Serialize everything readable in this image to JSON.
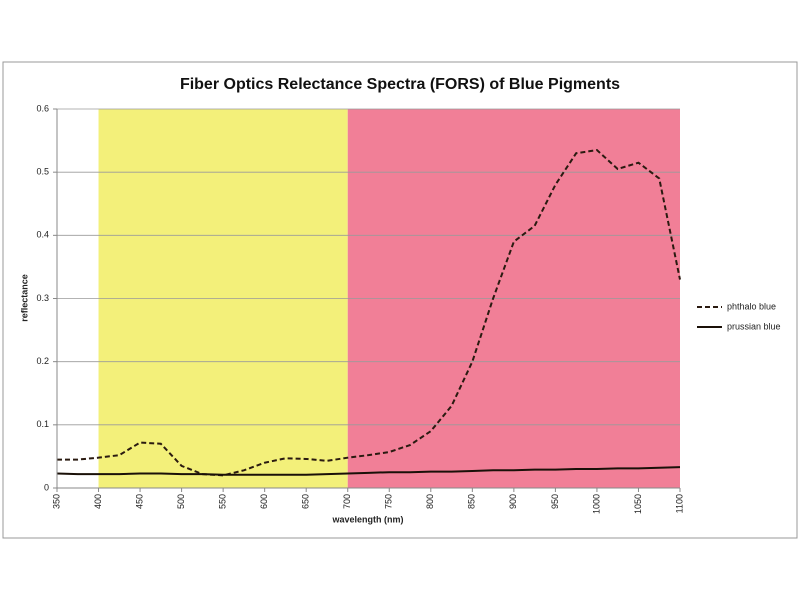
{
  "chart_data": {
    "type": "line",
    "title": "Fiber Optics Relectance Spectra (FORS) of Blue Pigments",
    "x_label": "wavelength (nm)",
    "y_label": "reflectance",
    "x": [
      350,
      375,
      400,
      425,
      450,
      475,
      500,
      525,
      550,
      575,
      600,
      625,
      650,
      675,
      700,
      725,
      750,
      775,
      800,
      825,
      850,
      875,
      900,
      925,
      950,
      975,
      1000,
      1025,
      1050,
      1075,
      1100
    ],
    "series": [
      {
        "name": "phthalo blue",
        "color": "#2a1a10",
        "dash": true,
        "values": [
          0.045,
          0.045,
          0.048,
          0.052,
          0.072,
          0.07,
          0.035,
          0.022,
          0.02,
          0.028,
          0.04,
          0.047,
          0.046,
          0.043,
          0.048,
          0.052,
          0.057,
          0.068,
          0.09,
          0.13,
          0.2,
          0.3,
          0.39,
          0.415,
          0.48,
          0.53,
          0.535,
          0.505,
          0.515,
          0.49,
          0.33
        ]
      },
      {
        "name": "prussian blue",
        "color": "#1a1008",
        "dash": false,
        "values": [
          0.023,
          0.022,
          0.022,
          0.022,
          0.023,
          0.023,
          0.022,
          0.022,
          0.021,
          0.021,
          0.021,
          0.021,
          0.021,
          0.022,
          0.023,
          0.024,
          0.025,
          0.025,
          0.026,
          0.026,
          0.027,
          0.028,
          0.028,
          0.029,
          0.029,
          0.03,
          0.03,
          0.031,
          0.031,
          0.032,
          0.033
        ]
      }
    ],
    "bands": [
      {
        "start": 400,
        "end": 700,
        "color": "#f3f07a"
      },
      {
        "start": 700,
        "end": 1100,
        "color": "#f17f97"
      }
    ],
    "xlim": [
      350,
      1100
    ],
    "xticks": [
      350,
      400,
      450,
      500,
      550,
      600,
      650,
      700,
      750,
      800,
      850,
      900,
      950,
      1000,
      1050,
      1100
    ],
    "ylim": [
      0,
      0.6
    ],
    "yticks": [
      0,
      0.1,
      0.2,
      0.3,
      0.4,
      0.5,
      0.6
    ],
    "grid": true,
    "legend": "right"
  }
}
